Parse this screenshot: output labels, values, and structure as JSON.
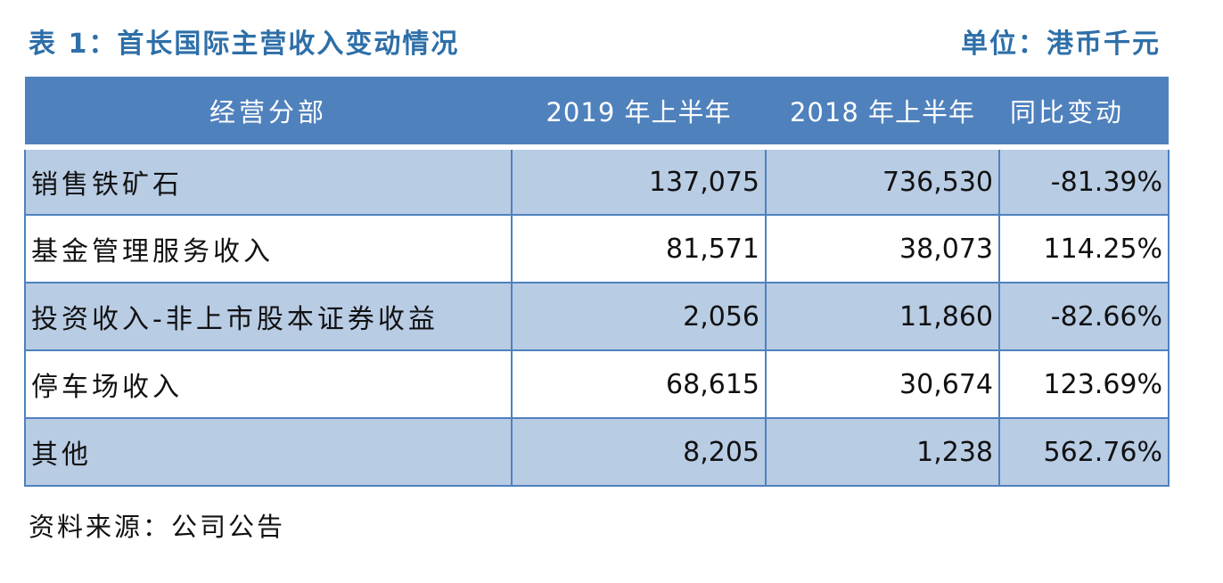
{
  "title": {
    "left": "表 1：首长国际主营收入变动情况",
    "right": "单位：港币千元"
  },
  "table": {
    "headers": [
      "经营分部",
      "2019 年上半年",
      "2018 年上半年",
      "同比变动"
    ],
    "rows": [
      [
        "销售铁矿石",
        "137,075",
        "736,530",
        "-81.39%"
      ],
      [
        "基金管理服务收入",
        "81,571",
        "38,073",
        "114.25%"
      ],
      [
        "投资收入-非上市股本证券收益",
        "2,056",
        "11,860",
        "-82.66%"
      ],
      [
        "停车场收入",
        "68,615",
        "30,674",
        "123.69%"
      ],
      [
        "其他",
        "8,205",
        "1,238",
        "562.76%"
      ]
    ]
  },
  "source": "资料来源：公司公告",
  "colors": {
    "header_bg": "#4f81bd",
    "shaded_row_bg": "#b8cce4",
    "title_color": "#2e6fa8"
  }
}
